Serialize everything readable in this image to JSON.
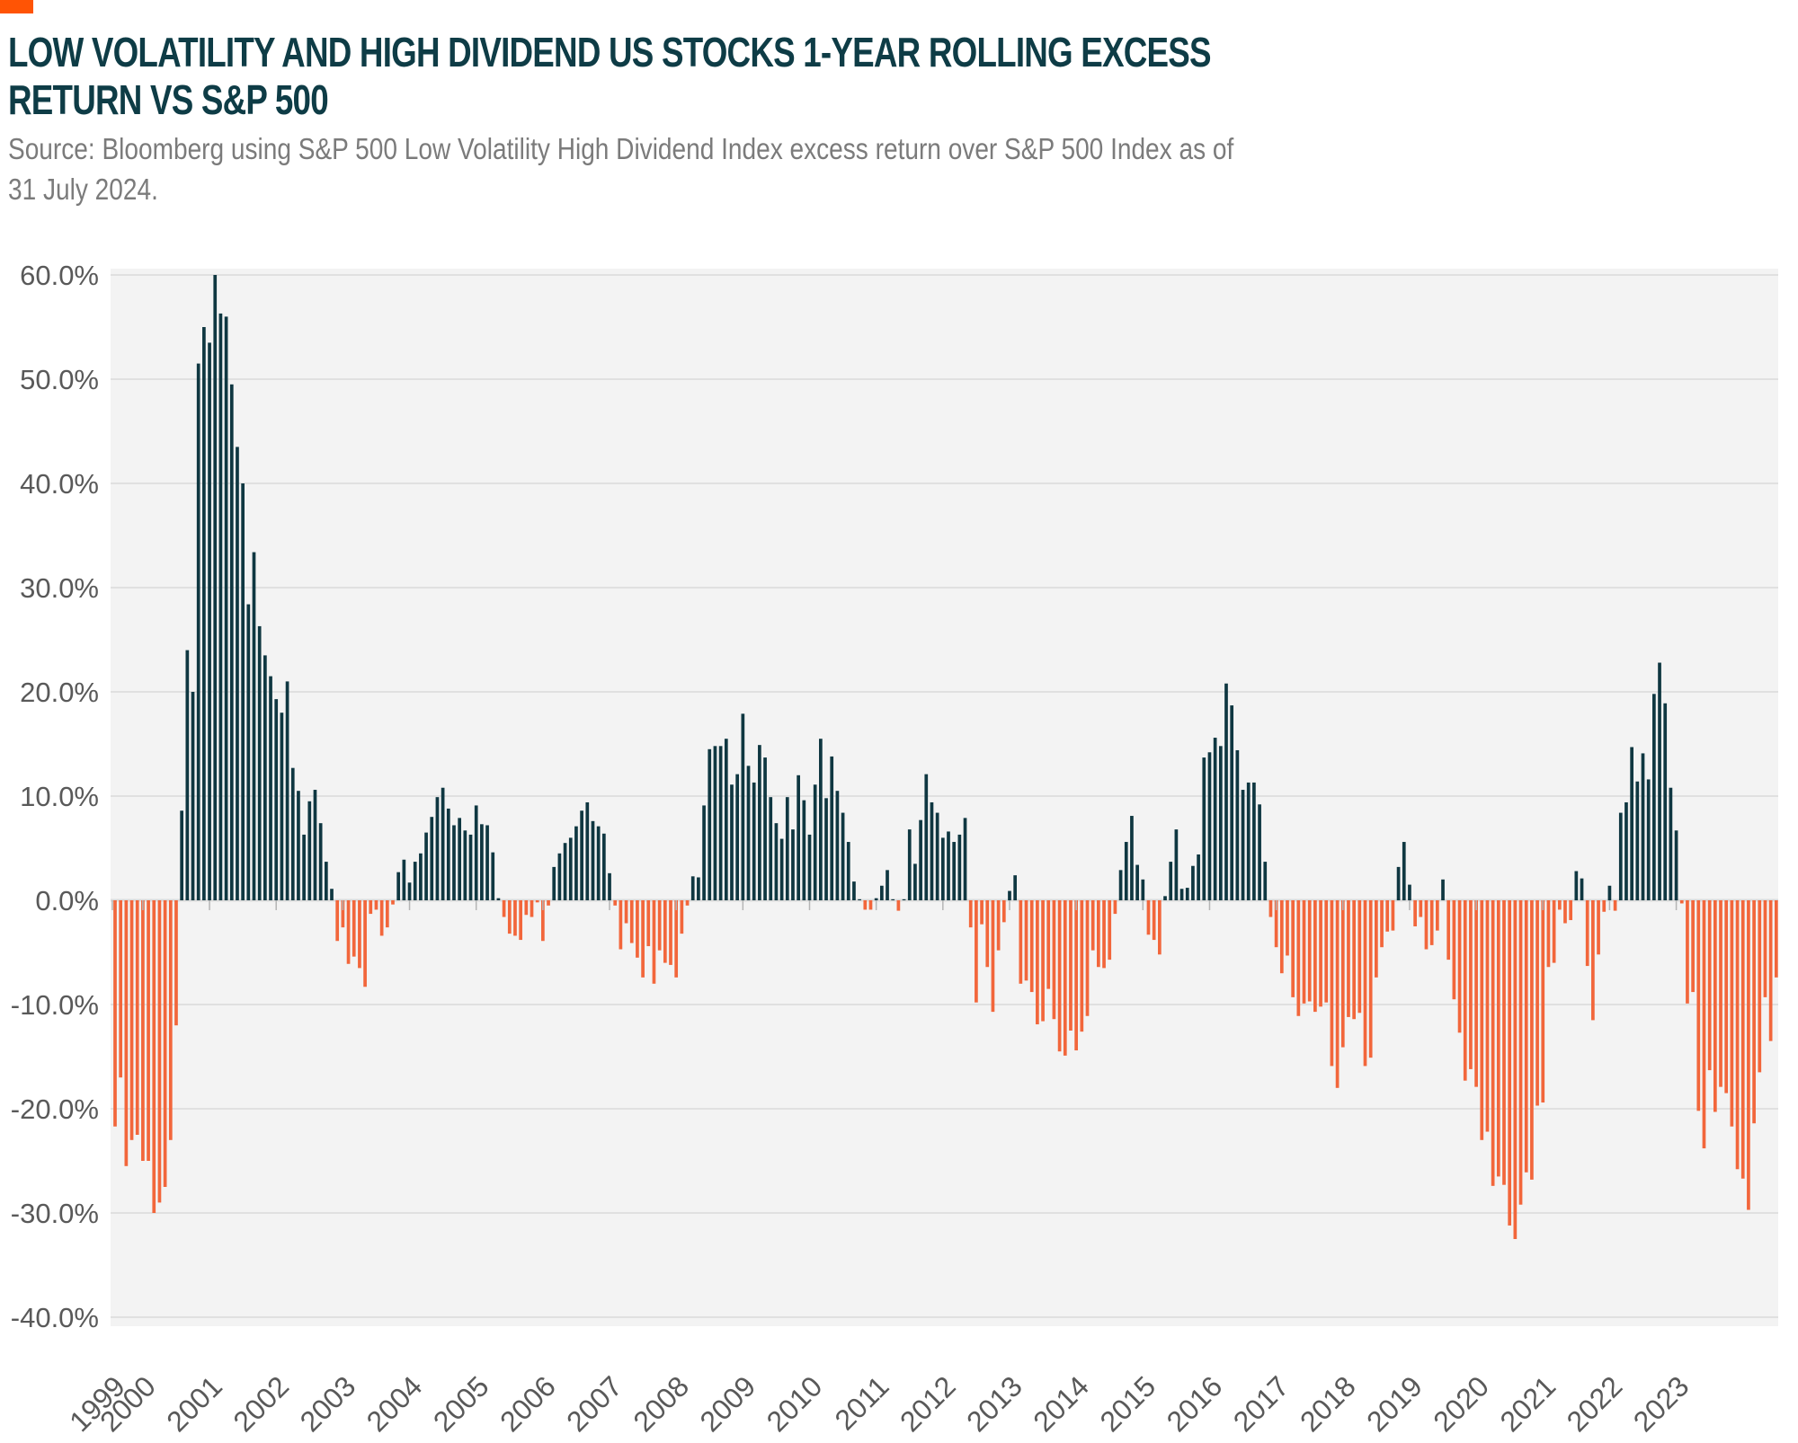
{
  "header": {
    "title_line1": "LOW VOLATILITY AND HIGH DIVIDEND US STOCKS 1-YEAR ROLLING EXCESS",
    "title_line2": "RETURN VS S&P 500",
    "source_line1": "Source: Bloomberg using S&P 500 Low Volatility High Dividend Index excess return over S&P 500 Index as of",
    "source_line2": "31 July 2024."
  },
  "chart_data": {
    "type": "bar",
    "title": "Low volatility and high dividend US stocks 1-year rolling excess return vs S&P 500",
    "xlabel": "",
    "ylabel": "",
    "unit": "%",
    "frequency": "monthly",
    "start_month": "1999-08",
    "end_month": "2024-07",
    "ylim": [
      -40,
      60
    ],
    "grid": true,
    "legend": "none",
    "colors": {
      "accent": "#FF5405",
      "positive": "#0F3741",
      "negative": "#F2663B",
      "title": "#0E3C46",
      "source_text": "#7B7B7B",
      "axis_label": "#595959",
      "gridline": "#D9D9D9",
      "zero_line": "#DBDBDB",
      "tick_mark": "#B5B5B5",
      "plot_bg": "#F3F3F3"
    },
    "yticks": [
      {
        "value": 60,
        "label": "60.0%"
      },
      {
        "value": 50,
        "label": "50.0%"
      },
      {
        "value": 40,
        "label": "40.0%"
      },
      {
        "value": 30,
        "label": "30.0%"
      },
      {
        "value": 20,
        "label": "20.0%"
      },
      {
        "value": 10,
        "label": "10.0%"
      },
      {
        "value": 0,
        "label": "0.0%"
      },
      {
        "value": -10,
        "label": "-10.0%"
      },
      {
        "value": -20,
        "label": "-20.0%"
      },
      {
        "value": -30,
        "label": "-30.0%"
      },
      {
        "value": -40,
        "label": "-40.0%"
      }
    ],
    "xtick_years": [
      1999,
      2000,
      2001,
      2002,
      2003,
      2004,
      2005,
      2006,
      2007,
      2008,
      2009,
      2010,
      2011,
      2012,
      2013,
      2014,
      2015,
      2016,
      2017,
      2018,
      2019,
      2020,
      2021,
      2022,
      2023
    ],
    "values": [
      -21.7,
      -17,
      -25.5,
      -23,
      -22.5,
      -25,
      -25,
      -30,
      -29,
      -27.5,
      -23,
      -12,
      8.6,
      24,
      20,
      51.5,
      55,
      53.5,
      60,
      56.3,
      56,
      49.5,
      43.5,
      40,
      28.4,
      33.4,
      26.3,
      23.5,
      21.5,
      19.3,
      18,
      21,
      12.7,
      10.5,
      6.3,
      9.5,
      10.6,
      7.4,
      3.7,
      1.1,
      -3.9,
      -2.6,
      -6.1,
      -5.4,
      -6.5,
      -8.3,
      -1.3,
      -0.9,
      -3.4,
      -2.6,
      -0.4,
      2.7,
      3.9,
      1.7,
      3.7,
      4.5,
      6.5,
      8,
      9.9,
      10.8,
      8.8,
      7.2,
      7.9,
      6.7,
      6.3,
      9.1,
      7.3,
      7.2,
      4.6,
      0.2,
      -1.6,
      -3.2,
      -3.4,
      -3.8,
      -1.4,
      -1.6,
      -0.2,
      -3.9,
      -0.5,
      3.2,
      4.5,
      5.5,
      6,
      7.1,
      8.6,
      9.4,
      7.6,
      7.1,
      6.4,
      2.6,
      -0.5,
      -4.7,
      -2.2,
      -4.1,
      -5.5,
      -7.4,
      -4.4,
      -8,
      -4.8,
      -6,
      -6.2,
      -7.4,
      -3.2,
      -0.5,
      2.3,
      2.2,
      9.1,
      14.5,
      14.8,
      14.8,
      15.5,
      11.1,
      12.1,
      17.9,
      12.9,
      11.3,
      14.9,
      13.7,
      9.9,
      7.4,
      5.9,
      9.9,
      6.8,
      12,
      9.6,
      6.3,
      11.1,
      15.5,
      9.8,
      13.8,
      10.5,
      8.4,
      5.6,
      1.8,
      0.1,
      -0.9,
      -0.9,
      0.2,
      1.4,
      2.9,
      0.1,
      -1,
      0.1,
      6.8,
      3.5,
      7.7,
      12.1,
      9.4,
      8.4,
      6,
      6.6,
      5.6,
      6.3,
      7.9,
      -2.6,
      -9.8,
      -2.3,
      -6.4,
      -10.7,
      -4.8,
      -2.1,
      0.9,
      2.4,
      -8,
      -7.7,
      -8.8,
      -11.9,
      -11.6,
      -8.5,
      -11.4,
      -14.5,
      -14.9,
      -12.5,
      -14.4,
      -12.6,
      -11.1,
      -4.8,
      -6.4,
      -6.5,
      -5.7,
      -1.3,
      2.9,
      5.6,
      8.1,
      3.4,
      2,
      -3.3,
      -3.8,
      -5.2,
      0.4,
      3.7,
      6.8,
      1.1,
      1.2,
      3.3,
      4.4,
      13.7,
      14.2,
      15.6,
      14.8,
      20.8,
      18.7,
      14.4,
      10.6,
      11.3,
      11.3,
      9.2,
      3.7,
      -1.6,
      -4.5,
      -7,
      -5.3,
      -9.3,
      -11.1,
      -9.9,
      -9.7,
      -10.7,
      -10.2,
      -9.8,
      -15.9,
      -18,
      -14.1,
      -11.2,
      -11.4,
      -10.8,
      -15.9,
      -15.1,
      -7.4,
      -4.5,
      -3,
      -2.9,
      3.2,
      5.6,
      1.5,
      -2.5,
      -1.6,
      -4.7,
      -4.3,
      -2.9,
      2,
      -5.7,
      -9.5,
      -12.7,
      -17.3,
      -16.2,
      -17.9,
      -23,
      -22.2,
      -27.4,
      -26.5,
      -27.3,
      -31.2,
      -32.5,
      -29.2,
      -26.1,
      -26.8,
      -19.7,
      -19.4,
      -6.4,
      -6,
      -0.9,
      -2.2,
      -1.9,
      2.8,
      2.1,
      -6.3,
      -11.5,
      -5.2,
      -1.1,
      1.4,
      -1,
      8.4,
      9.4,
      14.7,
      11.4,
      14.1,
      11.6,
      19.8,
      22.8,
      18.9,
      10.8,
      6.7,
      -0.3,
      -9.9,
      -8.8,
      -20.2,
      -23.8,
      -16.3,
      -20.3,
      -17.9,
      -18.5,
      -21.7,
      -25.8,
      -26.7,
      -29.7,
      -21.4,
      -16.5,
      -9.3,
      -13.5,
      -7.4
    ]
  }
}
